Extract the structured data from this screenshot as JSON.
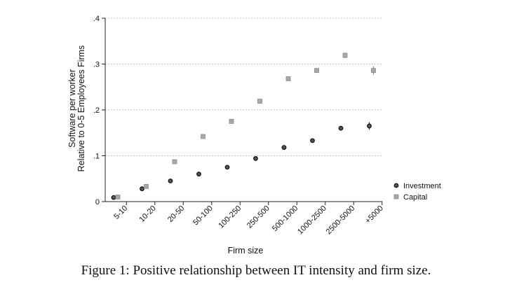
{
  "chart_data": {
    "type": "scatter",
    "title": "",
    "xlabel": "Firm size",
    "ylabel_lines": [
      "Software per worker",
      "Relative to 0-5 Employees Firms"
    ],
    "categories": [
      "5-10",
      "10-20",
      "20-50",
      "50-100",
      "100-250",
      "250-500",
      "500-1000",
      "1000-2500",
      "2500-5000",
      "+5000"
    ],
    "ylim": [
      0,
      0.4
    ],
    "yticks": [
      0,
      0.1,
      0.2,
      0.3,
      0.4
    ],
    "ytick_labels": [
      "0",
      ".1",
      ".2",
      ".3",
      ".4"
    ],
    "grid": "horizontal dotted",
    "legend_position": "right",
    "series": [
      {
        "name": "Investment",
        "marker": "circle",
        "color": "#111111",
        "values": [
          0.009,
          0.028,
          0.045,
          0.06,
          0.075,
          0.094,
          0.118,
          0.133,
          0.16,
          0.165
        ],
        "errors": [
          0.001,
          0.001,
          0.001,
          0.002,
          0.002,
          0.002,
          0.003,
          0.003,
          0.005,
          0.008
        ]
      },
      {
        "name": "Capital",
        "marker": "square",
        "color": "#9a9a9a",
        "values": [
          0.01,
          0.033,
          0.087,
          0.142,
          0.175,
          0.219,
          0.268,
          0.286,
          0.319,
          0.286
        ],
        "errors": [
          0.001,
          0.001,
          0.002,
          0.002,
          0.002,
          0.002,
          0.003,
          0.003,
          0.006,
          0.009
        ]
      }
    ]
  },
  "caption": "Figure 1: Positive relationship between IT intensity and firm size."
}
